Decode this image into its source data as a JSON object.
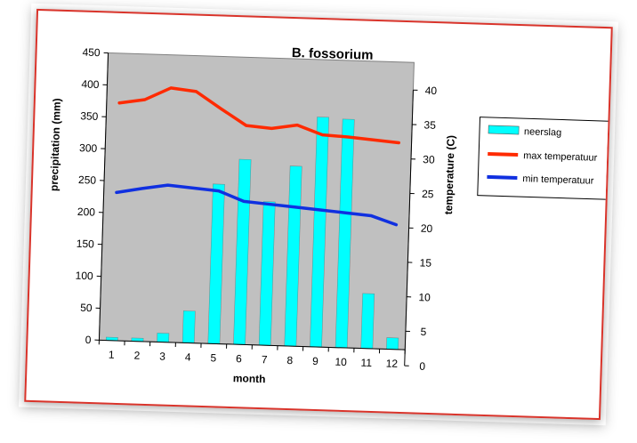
{
  "chart_data": {
    "type": "bar",
    "title": "B. fossorium",
    "xlabel": "month",
    "ylabel": "precipitation (mm)",
    "y2label": "temperature (C)",
    "categories": [
      "1",
      "2",
      "3",
      "4",
      "5",
      "6",
      "7",
      "8",
      "9",
      "10",
      "11",
      "12"
    ],
    "ylim": [
      0,
      450
    ],
    "y2lim": [
      0,
      40
    ],
    "yticks": [
      0,
      50,
      100,
      150,
      200,
      250,
      300,
      350,
      400,
      450
    ],
    "y2ticks": [
      0,
      5,
      10,
      15,
      20,
      25,
      30,
      35,
      40
    ],
    "series": [
      {
        "name": "neerslag",
        "type": "bar",
        "axis": "left",
        "values": [
          5,
          5,
          14,
          50,
          250,
          290,
          225,
          282,
          360,
          358,
          86,
          18
        ]
      },
      {
        "name": "max temperatuur",
        "type": "line",
        "axis": "right",
        "values": [
          36.8,
          37.4,
          39.2,
          38.8,
          36.4,
          34.1,
          33.8,
          34.4,
          33.1,
          32.9,
          32.6,
          32.3
        ]
      },
      {
        "name": "min temperatuur",
        "type": "line",
        "axis": "right",
        "values": [
          23.8,
          24.5,
          25.1,
          24.8,
          24.5,
          23.1,
          22.8,
          22.5,
          22.2,
          21.9,
          21.6,
          20.4
        ]
      }
    ],
    "grid": false,
    "legend_position": "right",
    "colors": {
      "plot_background": "#c0c0c0",
      "neerslag": "#00ffff",
      "max temperatuur": "#ff2a00",
      "min temperatuur": "#1030e0",
      "frame": "#d9342b"
    }
  }
}
